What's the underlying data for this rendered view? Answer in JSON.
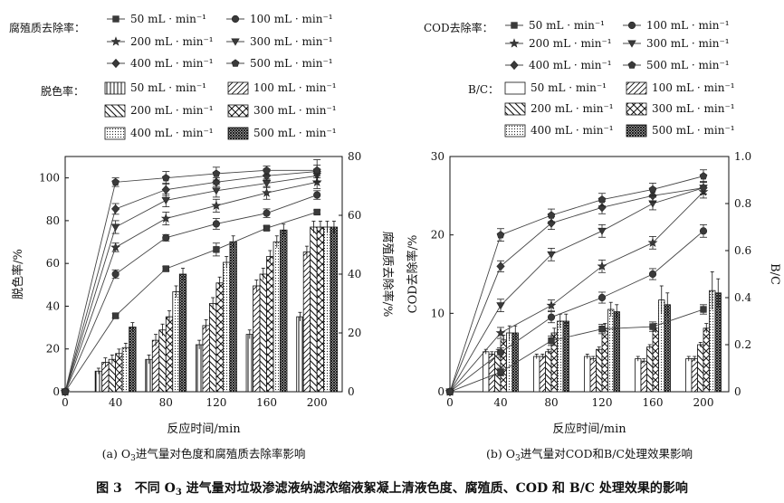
{
  "figure_caption": {
    "label": "图 3",
    "text_a": "不同 O",
    "sub": "3",
    "text_b": " 进气量对垃圾渗滤液纳滤浓缩液絮凝上清液色度、腐殖质、COD 和 B/C 处理效果的影响"
  },
  "chart_data": [
    {
      "id": "a",
      "type": "bar+line",
      "caption_a": "(a) O",
      "caption_sub": "3",
      "caption_b": "进气量对色度和腐殖质去除率影响",
      "xlabel": "反应时间/min",
      "ylabel_left": "脱色率/%",
      "ylabel_right": "腐殖质去除率/%",
      "x_ticks": [
        "0",
        "40",
        "80",
        "120",
        "160",
        "200"
      ],
      "xlim": [
        0,
        220
      ],
      "ylim_left": [
        0,
        110
      ],
      "yticks_left": [
        "0",
        "20",
        "40",
        "60",
        "80",
        "100"
      ],
      "ylim_right": [
        0,
        80
      ],
      "yticks_right": [
        "0",
        "20",
        "40",
        "60",
        "80"
      ],
      "line_legend_title": "腐殖质去除率：",
      "bar_legend_title": "脱色率：",
      "flow_labels": [
        "50 mL · min⁻¹",
        "100 mL · min⁻¹",
        "200 mL · min⁻¹",
        "300 mL · min⁻¹",
        "400 mL · min⁻¹",
        "500 mL · min⁻¹"
      ],
      "x": [
        0,
        40,
        80,
        120,
        160,
        200
      ],
      "line_series": [
        {
          "name": "50 mL · min⁻¹",
          "marker": "square",
          "values": [
            0,
            35.5,
            57.5,
            66.5,
            76.5,
            84
          ],
          "errors": [
            0,
            1,
            1,
            3,
            1,
            1
          ]
        },
        {
          "name": "100 mL · min⁻¹",
          "marker": "circle",
          "values": [
            0,
            55,
            72,
            78.5,
            83.5,
            92
          ],
          "errors": [
            0,
            2,
            1.5,
            2.5,
            2,
            2
          ]
        },
        {
          "name": "200 mL · min⁻¹",
          "marker": "star",
          "values": [
            0,
            67.5,
            81,
            87,
            93,
            98
          ],
          "errors": [
            0,
            2,
            3,
            3,
            3,
            3
          ]
        },
        {
          "name": "300 mL · min⁻¹",
          "marker": "tri-down",
          "values": [
            0,
            77,
            89.5,
            94,
            97.5,
            101
          ],
          "errors": [
            0,
            3,
            3,
            3,
            2,
            3
          ]
        },
        {
          "name": "400 mL · min⁻¹",
          "marker": "diamond",
          "values": [
            0,
            85.5,
            94.5,
            98,
            101,
            103
          ],
          "errors": [
            0,
            2.5,
            3,
            2,
            2,
            3
          ]
        },
        {
          "name": "500 mL · min⁻¹",
          "marker": "pentagon",
          "values": [
            0,
            98,
            100,
            102,
            103.5,
            103.5
          ],
          "errors": [
            0,
            2,
            3,
            3,
            2,
            5
          ]
        }
      ],
      "bar_series": [
        {
          "name": "50 mL · min⁻¹",
          "pattern": "vertical",
          "values": [
            0,
            7,
            11,
            16,
            19.5,
            25.5
          ],
          "errors": [
            0,
            1,
            1.5,
            1.5,
            1.5,
            1.5
          ]
        },
        {
          "name": "100 mL · min⁻¹",
          "pattern": "diagonal",
          "values": [
            0,
            10,
            17.5,
            22.5,
            36,
            47.5
          ],
          "errors": [
            0,
            1.5,
            2,
            2,
            2,
            2
          ]
        },
        {
          "name": "200 mL · min⁻¹",
          "pattern": "backslash",
          "values": [
            0,
            11,
            21,
            30,
            40,
            56
          ],
          "errors": [
            0,
            1.5,
            2,
            2,
            2,
            2
          ]
        },
        {
          "name": "300 mL · min⁻¹",
          "pattern": "cross",
          "values": [
            0,
            13,
            25.5,
            37,
            46,
            56
          ],
          "errors": [
            0,
            1.5,
            2,
            2,
            2,
            2
          ]
        },
        {
          "name": "400 mL · min⁻¹",
          "pattern": "dots",
          "values": [
            0,
            15,
            34,
            44,
            51,
            56
          ],
          "errors": [
            0,
            1.5,
            2,
            2,
            2,
            2
          ]
        },
        {
          "name": "500 mL · min⁻¹",
          "pattern": "dense",
          "values": [
            0,
            22,
            40,
            51,
            55,
            56
          ],
          "errors": [
            0,
            1.5,
            2,
            2,
            2,
            2
          ]
        }
      ]
    },
    {
      "id": "b",
      "type": "bar+line",
      "caption_a": "(b) O",
      "caption_sub": "3",
      "caption_b": "进气量对COD和B/C处理效果影响",
      "xlabel": "反应时间/min",
      "ylabel_left": "COD去除率/%",
      "ylabel_right": "B/C",
      "x_ticks": [
        "0",
        "40",
        "80",
        "120",
        "160",
        "200"
      ],
      "xlim": [
        0,
        220
      ],
      "ylim_left": [
        0,
        30
      ],
      "yticks_left": [
        "0",
        "10",
        "20",
        "30"
      ],
      "ylim_right": [
        0,
        1.0
      ],
      "yticks_right": [
        "0",
        "0.2",
        "0.4",
        "0.6",
        "0.8",
        "1.0"
      ],
      "line_legend_title": "COD去除率：",
      "bar_legend_title": "B/C：",
      "flow_labels": [
        "50 mL · min⁻¹",
        "100 mL · min⁻¹",
        "200 mL · min⁻¹",
        "300 mL · min⁻¹",
        "400 mL · min⁻¹",
        "500 mL · min⁻¹"
      ],
      "x": [
        0,
        40,
        80,
        120,
        160,
        200
      ],
      "line_series": [
        {
          "name": "50 mL · min⁻¹",
          "marker": "square",
          "values": [
            0,
            2.5,
            6.5,
            8,
            8.3,
            10.5
          ],
          "errors": [
            0,
            0.5,
            0.6,
            0.6,
            0.6,
            0.6
          ]
        },
        {
          "name": "100 mL · min⁻¹",
          "marker": "circle",
          "values": [
            0,
            5,
            9.5,
            12,
            15,
            20.5
          ],
          "errors": [
            0,
            0.6,
            0.7,
            0.7,
            0.7,
            0.8
          ]
        },
        {
          "name": "200 mL · min⁻¹",
          "marker": "star",
          "values": [
            0,
            7.5,
            11,
            16,
            19,
            25.5
          ],
          "errors": [
            0,
            0.7,
            0.7,
            0.8,
            0.8,
            0.8
          ]
        },
        {
          "name": "300 mL · min⁻¹",
          "marker": "tri-down",
          "values": [
            0,
            11,
            17.5,
            20.5,
            24,
            26
          ],
          "errors": [
            0,
            0.8,
            0.8,
            0.8,
            0.8,
            0.8
          ]
        },
        {
          "name": "400 mL · min⁻¹",
          "marker": "diamond",
          "values": [
            0,
            16,
            21.5,
            23.5,
            25,
            26
          ],
          "errors": [
            0,
            0.7,
            0.8,
            0.8,
            0.8,
            0.8
          ]
        },
        {
          "name": "500 mL · min⁻¹",
          "marker": "pentagon",
          "values": [
            0,
            20,
            22.5,
            24.5,
            25.8,
            27.5
          ],
          "errors": [
            0,
            0.8,
            0.8,
            0.8,
            0.8,
            0.8
          ]
        }
      ],
      "bar_series": [
        {
          "name": "50 mL · min⁻¹",
          "pattern": "outline",
          "values": [
            0,
            0.17,
            0.15,
            0.15,
            0.14,
            0.14
          ],
          "errors": [
            0,
            0.01,
            0.01,
            0.01,
            0.01,
            0.01
          ]
        },
        {
          "name": "100 mL · min⁻¹",
          "pattern": "diagonal",
          "values": [
            0,
            0.16,
            0.15,
            0.14,
            0.13,
            0.14
          ],
          "errors": [
            0,
            0.01,
            0.01,
            0.01,
            0.01,
            0.01
          ]
        },
        {
          "name": "200 mL · min⁻¹",
          "pattern": "backslash",
          "values": [
            0,
            0.17,
            0.17,
            0.18,
            0.19,
            0.2
          ],
          "errors": [
            0,
            0.01,
            0.01,
            0.01,
            0.01,
            0.01
          ]
        },
        {
          "name": "300 mL · min⁻¹",
          "pattern": "cross",
          "values": [
            0,
            0.22,
            0.25,
            0.27,
            0.27,
            0.27
          ],
          "errors": [
            0,
            0.02,
            0.02,
            0.02,
            0.02,
            0.02
          ]
        },
        {
          "name": "400 mL · min⁻¹",
          "pattern": "dots",
          "values": [
            0,
            0.25,
            0.3,
            0.35,
            0.39,
            0.43
          ],
          "errors": [
            0,
            0.03,
            0.03,
            0.03,
            0.06,
            0.08
          ]
        },
        {
          "name": "500 mL · min⁻¹",
          "pattern": "dense",
          "values": [
            0,
            0.25,
            0.3,
            0.34,
            0.37,
            0.42
          ],
          "errors": [
            0,
            0.03,
            0.03,
            0.03,
            0.05,
            0.06
          ]
        }
      ]
    }
  ]
}
